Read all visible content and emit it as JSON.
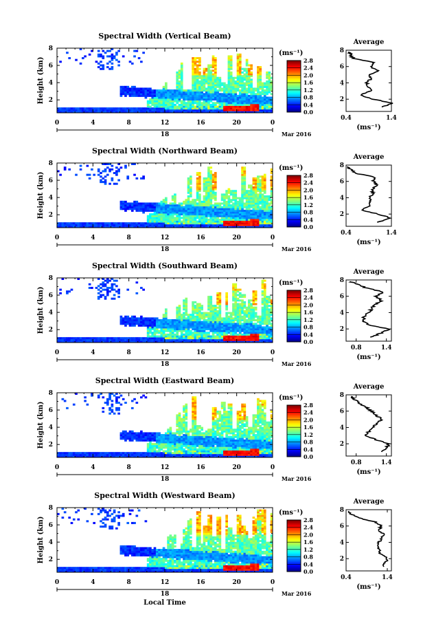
{
  "figure": {
    "xlabel": "Local Time",
    "date_label": "Mar 2016",
    "day_label": "18",
    "colorbar_unit": "(ms⁻¹)",
    "average_title": "Average",
    "average_xunit": "(ms⁻¹)",
    "ylabel": "Height (km)",
    "colormap": [
      "#00007f",
      "#0000ff",
      "#007fff",
      "#00ffff",
      "#7fff7f",
      "#ffff00",
      "#ff7f00",
      "#ff0000",
      "#7f0000"
    ]
  },
  "chart_data": [
    {
      "type": "heatmap",
      "title": "Spectral Width (Vertical Beam)",
      "xlabel": "",
      "ylabel": "Height (km)",
      "x_range": [
        0,
        24
      ],
      "x_ticks": [
        "0",
        "4",
        "8",
        "12",
        "16",
        "20",
        "0"
      ],
      "y_range": [
        0.5,
        8
      ],
      "y_ticks": [
        "2",
        "4",
        "6",
        "8"
      ],
      "colorbar": {
        "range": [
          0,
          2.8
        ],
        "ticks": [
          "0.0",
          "0.4",
          "0.8",
          "1.2",
          "1.6",
          "2.0",
          "2.4",
          "2.8"
        ]
      },
      "average_profile": {
        "title": "Average",
        "x_ticks": [
          "0.4",
          "1.4"
        ],
        "x_range": [
          0.4,
          1.4
        ],
        "height": [
          1.0,
          1.5,
          2.0,
          2.5,
          3.0,
          3.5,
          4.0,
          4.5,
          5.0,
          5.5,
          6.0,
          6.5,
          7.0,
          7.5,
          7.8
        ],
        "value": [
          1.2,
          1.4,
          1.0,
          0.7,
          0.95,
          0.9,
          0.85,
          0.95,
          0.9,
          1.1,
          0.95,
          1.0,
          0.55,
          0.5,
          0.45
        ]
      }
    },
    {
      "type": "heatmap",
      "title": "Spectral Width (Northward Beam)",
      "xlabel": "",
      "ylabel": "Height (km)",
      "x_range": [
        0,
        24
      ],
      "x_ticks": [
        "0",
        "4",
        "8",
        "12",
        "16",
        "20",
        "0"
      ],
      "y_range": [
        0.5,
        8
      ],
      "y_ticks": [
        "2",
        "4",
        "6",
        "8"
      ],
      "colorbar": {
        "range": [
          0,
          2.8
        ],
        "ticks": [
          "0.0",
          "0.4",
          "0.8",
          "1.2",
          "1.6",
          "2.0",
          "2.4",
          "2.8"
        ]
      },
      "average_profile": {
        "title": "Average",
        "x_ticks": [
          "0.4",
          "1.4"
        ],
        "x_range": [
          0.4,
          1.4
        ],
        "height": [
          1.0,
          1.5,
          2.0,
          2.5,
          3.0,
          3.5,
          4.0,
          4.5,
          5.0,
          5.5,
          6.0,
          6.5,
          7.0,
          7.5,
          7.8
        ],
        "value": [
          1.1,
          1.4,
          1.1,
          0.75,
          0.9,
          0.95,
          0.9,
          1.0,
          0.95,
          1.1,
          1.0,
          1.05,
          0.6,
          0.5,
          0.45
        ]
      }
    },
    {
      "type": "heatmap",
      "title": "Spectral Width (Southward Beam)",
      "xlabel": "",
      "ylabel": "Height (km)",
      "x_range": [
        0,
        24
      ],
      "x_ticks": [
        "0",
        "4",
        "8",
        "12",
        "16",
        "20",
        "0"
      ],
      "y_range": [
        0.5,
        8
      ],
      "y_ticks": [
        "2",
        "4",
        "6",
        "8"
      ],
      "colorbar": {
        "range": [
          0,
          2.8
        ],
        "ticks": [
          "0.0",
          "0.4",
          "0.8",
          "1.2",
          "1.6",
          "2.0",
          "2.4",
          "2.8"
        ]
      },
      "average_profile": {
        "title": "Average",
        "x_ticks": [
          "0.8",
          "1.4"
        ],
        "x_range": [
          0.6,
          1.5
        ],
        "height": [
          1.0,
          1.5,
          2.0,
          2.5,
          3.0,
          3.5,
          4.0,
          4.5,
          5.0,
          5.5,
          6.0,
          6.5,
          7.0,
          7.5,
          7.8
        ],
        "value": [
          1.1,
          1.3,
          1.45,
          1.05,
          0.95,
          0.95,
          1.05,
          1.1,
          1.2,
          1.3,
          1.2,
          1.35,
          1.0,
          0.8,
          0.7
        ]
      }
    },
    {
      "type": "heatmap",
      "title": "Spectral Width (Eastward Beam)",
      "xlabel": "",
      "ylabel": "Height (km)",
      "x_range": [
        0,
        24
      ],
      "x_ticks": [
        "0",
        "4",
        "8",
        "12",
        "16",
        "20",
        "0"
      ],
      "y_range": [
        0.5,
        8
      ],
      "y_ticks": [
        "2",
        "4",
        "6",
        "8"
      ],
      "colorbar": {
        "range": [
          0,
          2.8
        ],
        "ticks": [
          "0.0",
          "0.4",
          "0.8",
          "1.2",
          "1.6",
          "2.0",
          "2.4",
          "2.8"
        ]
      },
      "average_profile": {
        "title": "Average",
        "x_ticks": [
          "0.8",
          "1.4"
        ],
        "x_range": [
          0.6,
          1.5
        ],
        "height": [
          1.0,
          1.5,
          2.0,
          2.5,
          3.0,
          3.5,
          4.0,
          4.5,
          5.0,
          5.5,
          6.0,
          6.5,
          7.0,
          7.5,
          7.8
        ],
        "value": [
          1.3,
          1.4,
          1.45,
          1.2,
          1.0,
          1.05,
          1.15,
          1.2,
          1.3,
          1.2,
          1.1,
          1.0,
          0.85,
          0.75,
          0.7
        ]
      }
    },
    {
      "type": "heatmap",
      "title": "Spectral Width (Westward Beam)",
      "xlabel": "Local Time",
      "ylabel": "Height (km)",
      "x_range": [
        0,
        24
      ],
      "x_ticks": [
        "0",
        "4",
        "8",
        "12",
        "16",
        "20",
        "0"
      ],
      "y_range": [
        0.5,
        8
      ],
      "y_ticks": [
        "2",
        "4",
        "6",
        "8"
      ],
      "colorbar": {
        "range": [
          0,
          2.8
        ],
        "ticks": [
          "0.0",
          "0.4",
          "0.8",
          "1.2",
          "1.6",
          "2.0",
          "2.4",
          "2.8"
        ]
      },
      "average_profile": {
        "title": "Average",
        "x_ticks": [
          "0.4",
          "1.4"
        ],
        "x_range": [
          0.4,
          1.5
        ],
        "height": [
          1.0,
          1.5,
          2.0,
          2.5,
          3.0,
          3.5,
          4.0,
          4.5,
          5.0,
          5.5,
          6.0,
          6.5,
          7.0,
          7.5,
          7.8
        ],
        "value": [
          1.3,
          1.35,
          1.4,
          1.25,
          1.2,
          1.15,
          1.2,
          1.25,
          1.3,
          1.2,
          1.25,
          1.1,
          0.7,
          0.5,
          0.45
        ]
      }
    }
  ]
}
